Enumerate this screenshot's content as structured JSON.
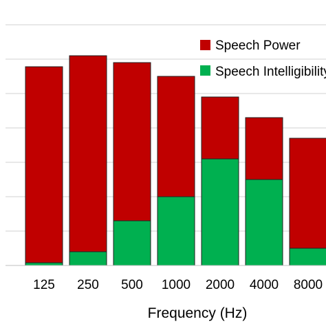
{
  "chart_data": {
    "type": "bar",
    "stacked": true,
    "categories": [
      "125",
      "250",
      "500",
      "1000",
      "2000",
      "4000",
      "8000"
    ],
    "series": [
      {
        "name": "Speech Intelligibility",
        "color": "#00b050",
        "values": [
          0.8,
          4,
          13,
          20,
          31,
          25,
          5
        ]
      },
      {
        "name": "Speech Power",
        "color": "#c00000",
        "values": [
          57,
          57,
          46,
          35,
          18,
          18,
          32
        ]
      }
    ],
    "xlabel": "Frequency (Hz)",
    "ylabel": "",
    "ylim": [
      0,
      70
    ],
    "grid": true,
    "legend": "top-right",
    "legend_labels": {
      "power": "Speech Power",
      "intelligibility": "Speech Intelligibility"
    }
  }
}
